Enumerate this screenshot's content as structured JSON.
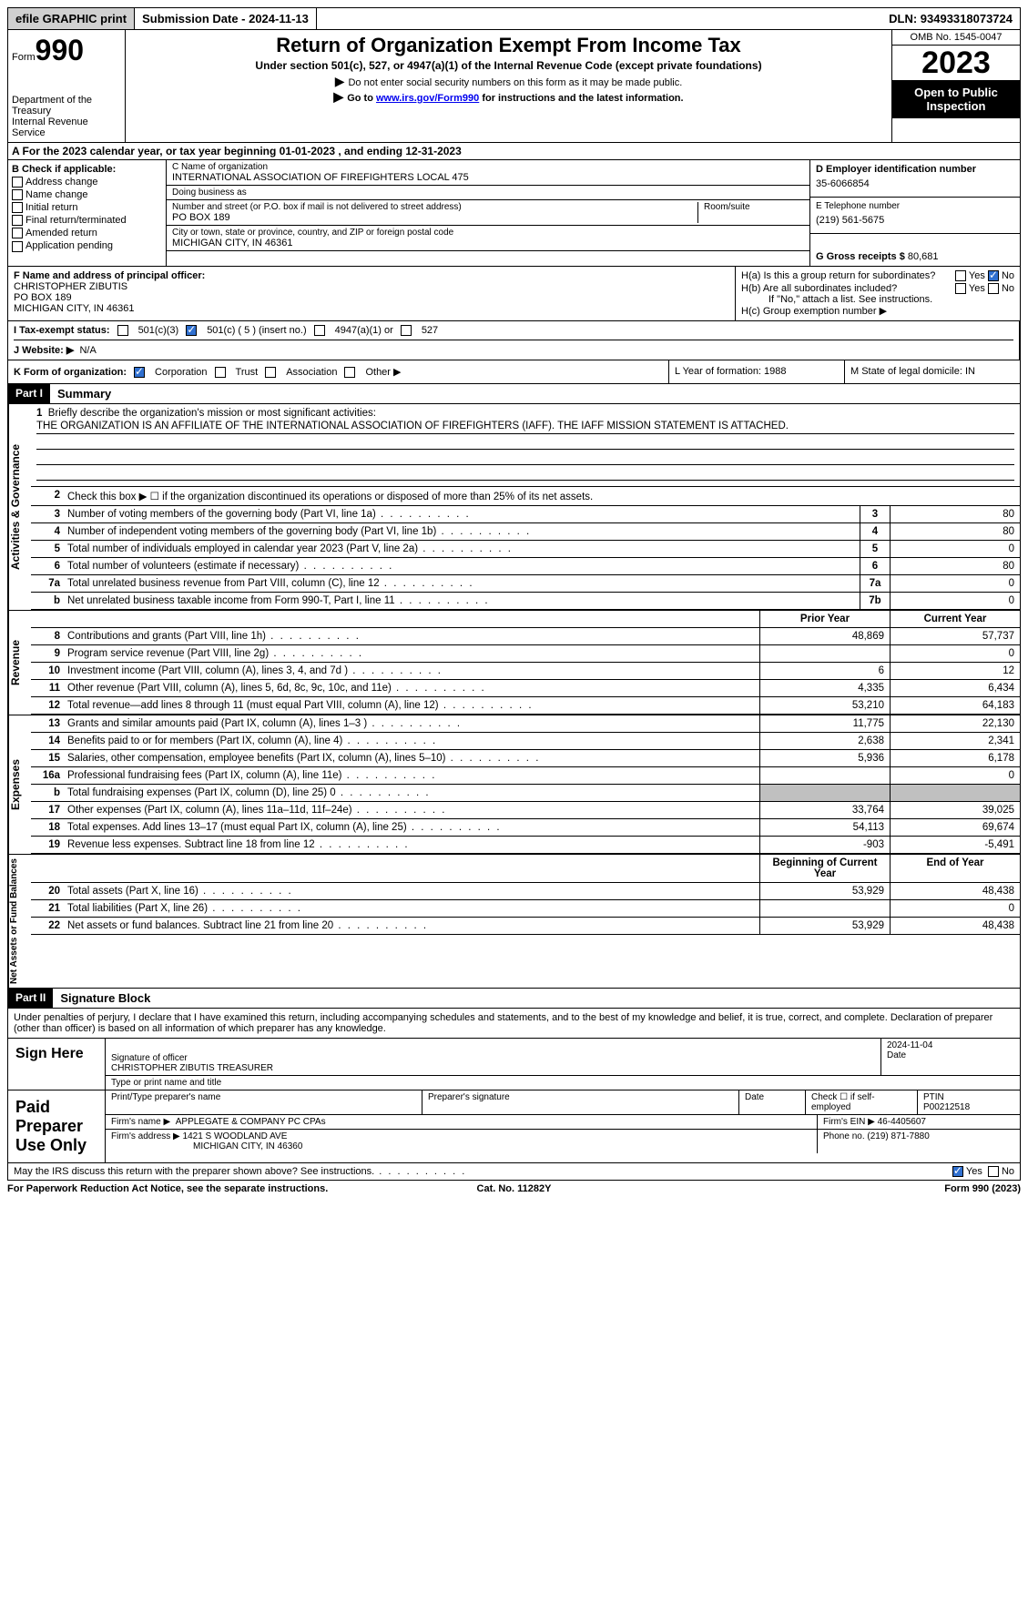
{
  "topbar": {
    "efile": "efile GRAPHIC print",
    "submission": "Submission Date - 2024-11-13",
    "dln": "DLN: 93493318073724"
  },
  "header": {
    "form_word": "Form",
    "form_no": "990",
    "dept": "Department of the Treasury\nInternal Revenue Service",
    "title": "Return of Organization Exempt From Income Tax",
    "sub1": "Under section 501(c), 527, or 4947(a)(1) of the Internal Revenue Code (except private foundations)",
    "sub2": "Do not enter social security numbers on this form as it may be made public.",
    "sub3_pre": "Go to ",
    "sub3_link": "www.irs.gov/Form990",
    "sub3_post": " for instructions and the latest information.",
    "omb": "OMB No. 1545-0047",
    "year": "2023",
    "open": "Open to Public Inspection"
  },
  "rowA": "A  For the 2023 calendar year, or tax year beginning 01-01-2023    , and ending 12-31-2023",
  "colB": {
    "hdr": "B Check if applicable:",
    "items": [
      "Address change",
      "Name change",
      "Initial return",
      "Final return/terminated",
      "Amended return",
      "Application pending"
    ]
  },
  "colC": {
    "name_label": "C Name of organization",
    "name": "INTERNATIONAL ASSOCIATION OF FIREFIGHTERS LOCAL 475",
    "dba_label": "Doing business as",
    "dba": "",
    "street_label": "Number and street (or P.O. box if mail is not delivered to street address)",
    "street": "PO BOX 189",
    "room_label": "Room/suite",
    "city_label": "City or town, state or province, country, and ZIP or foreign postal code",
    "city": "MICHIGAN CITY, IN  46361"
  },
  "colD": {
    "ein_label": "D Employer identification number",
    "ein": "35-6066854",
    "phone_label": "E Telephone number",
    "phone": "(219) 561-5675",
    "gross_label": "G Gross receipts $",
    "gross": "80,681"
  },
  "colF": {
    "label": "F  Name and address of principal officer:",
    "name": "CHRISTOPHER ZIBUTIS",
    "addr1": "PO BOX 189",
    "addr2": "MICHIGAN CITY, IN  46361"
  },
  "colH": {
    "ha": "H(a)  Is this a group return for subordinates?",
    "hb": "H(b)  Are all subordinates included?",
    "hb_note": "If \"No,\" attach a list. See instructions.",
    "hc": "H(c)  Group exemption number ▶"
  },
  "rowI": {
    "label": "I    Tax-exempt status:",
    "opt1": "501(c)(3)",
    "opt2": "501(c) ( 5 ) (insert no.)",
    "opt3": "4947(a)(1) or",
    "opt4": "527"
  },
  "rowJ": {
    "label": "J    Website: ▶",
    "val": "N/A"
  },
  "rowK": {
    "label": "K Form of organization:",
    "opts": [
      "Corporation",
      "Trust",
      "Association",
      "Other ▶"
    ],
    "l": "L Year of formation: 1988",
    "m": "M State of legal domicile: IN"
  },
  "parts": {
    "p1": "Part I",
    "p1_title": "Summary",
    "p2": "Part II",
    "p2_title": "Signature Block"
  },
  "mission": {
    "label": "Briefly describe the organization's mission or most significant activities:",
    "text": "THE ORGANIZATION IS AN AFFILIATE OF THE INTERNATIONAL ASSOCIATION OF FIREFIGHTERS (IAFF). THE IAFF MISSION STATEMENT IS ATTACHED."
  },
  "line2": "Check this box ▶ ☐ if the organization discontinued its operations or disposed of more than 25% of its net assets.",
  "gov_lines": [
    {
      "n": "3",
      "d": "Number of voting members of the governing body (Part VI, line 1a)",
      "box": "3",
      "v": "80"
    },
    {
      "n": "4",
      "d": "Number of independent voting members of the governing body (Part VI, line 1b)",
      "box": "4",
      "v": "80"
    },
    {
      "n": "5",
      "d": "Total number of individuals employed in calendar year 2023 (Part V, line 2a)",
      "box": "5",
      "v": "0"
    },
    {
      "n": "6",
      "d": "Total number of volunteers (estimate if necessary)",
      "box": "6",
      "v": "80"
    },
    {
      "n": "7a",
      "d": "Total unrelated business revenue from Part VIII, column (C), line 12",
      "box": "7a",
      "v": "0"
    },
    {
      "n": "b",
      "d": "Net unrelated business taxable income from Form 990-T, Part I, line 11",
      "box": "7b",
      "v": "0"
    }
  ],
  "col_hdrs": {
    "prior": "Prior Year",
    "current": "Current Year"
  },
  "rev_lines": [
    {
      "n": "8",
      "d": "Contributions and grants (Part VIII, line 1h)",
      "p": "48,869",
      "c": "57,737"
    },
    {
      "n": "9",
      "d": "Program service revenue (Part VIII, line 2g)",
      "p": "",
      "c": "0"
    },
    {
      "n": "10",
      "d": "Investment income (Part VIII, column (A), lines 3, 4, and 7d )",
      "p": "6",
      "c": "12"
    },
    {
      "n": "11",
      "d": "Other revenue (Part VIII, column (A), lines 5, 6d, 8c, 9c, 10c, and 11e)",
      "p": "4,335",
      "c": "6,434"
    },
    {
      "n": "12",
      "d": "Total revenue—add lines 8 through 11 (must equal Part VIII, column (A), line 12)",
      "p": "53,210",
      "c": "64,183"
    }
  ],
  "exp_lines": [
    {
      "n": "13",
      "d": "Grants and similar amounts paid (Part IX, column (A), lines 1–3 )",
      "p": "11,775",
      "c": "22,130"
    },
    {
      "n": "14",
      "d": "Benefits paid to or for members (Part IX, column (A), line 4)",
      "p": "2,638",
      "c": "2,341"
    },
    {
      "n": "15",
      "d": "Salaries, other compensation, employee benefits (Part IX, column (A), lines 5–10)",
      "p": "5,936",
      "c": "6,178"
    },
    {
      "n": "16a",
      "d": "Professional fundraising fees (Part IX, column (A), line 11e)",
      "p": "",
      "c": "0"
    },
    {
      "n": "b",
      "d": "Total fundraising expenses (Part IX, column (D), line 25) 0",
      "p": "",
      "c": "",
      "shaded": true
    },
    {
      "n": "17",
      "d": "Other expenses (Part IX, column (A), lines 11a–11d, 11f–24e)",
      "p": "33,764",
      "c": "39,025"
    },
    {
      "n": "18",
      "d": "Total expenses. Add lines 13–17 (must equal Part IX, column (A), line 25)",
      "p": "54,113",
      "c": "69,674"
    },
    {
      "n": "19",
      "d": "Revenue less expenses. Subtract line 18 from line 12",
      "p": "-903",
      "c": "-5,491"
    }
  ],
  "na_hdrs": {
    "begin": "Beginning of Current Year",
    "end": "End of Year"
  },
  "na_lines": [
    {
      "n": "20",
      "d": "Total assets (Part X, line 16)",
      "p": "53,929",
      "c": "48,438"
    },
    {
      "n": "21",
      "d": "Total liabilities (Part X, line 26)",
      "p": "",
      "c": "0"
    },
    {
      "n": "22",
      "d": "Net assets or fund balances. Subtract line 21 from line 20",
      "p": "53,929",
      "c": "48,438"
    }
  ],
  "vert": {
    "gov": "Activities & Governance",
    "rev": "Revenue",
    "exp": "Expenses",
    "na": "Net Assets or Fund Balances"
  },
  "sig_decl": "Under penalties of perjury, I declare that I have examined this return, including accompanying schedules and statements, and to the best of my knowledge and belief, it is true, correct, and complete. Declaration of preparer (other than officer) is based on all information of which preparer has any knowledge.",
  "sign_here": {
    "label": "Sign Here",
    "sig_label": "Signature of officer",
    "name": "CHRISTOPHER ZIBUTIS TREASURER",
    "type_label": "Type or print name and title",
    "date_label": "Date",
    "date": "2024-11-04"
  },
  "paid_prep": {
    "label": "Paid Preparer Use Only",
    "print_label": "Print/Type preparer's name",
    "sig_label": "Preparer's signature",
    "date_label": "Date",
    "check_label": "Check ☐ if self-employed",
    "ptin_label": "PTIN",
    "ptin": "P00212518",
    "firm_name_label": "Firm's name    ▶",
    "firm_name": "APPLEGATE & COMPANY PC CPAs",
    "firm_ein_label": "Firm's EIN ▶",
    "firm_ein": "46-4405607",
    "firm_addr_label": "Firm's address ▶",
    "firm_addr1": "1421 S WOODLAND AVE",
    "firm_addr2": "MICHIGAN CITY, IN  46360",
    "phone_label": "Phone no.",
    "phone": "(219) 871-7880"
  },
  "discuss": "May the IRS discuss this return with the preparer shown above? See instructions.",
  "footer": {
    "pra": "For Paperwork Reduction Act Notice, see the separate instructions.",
    "cat": "Cat. No. 11282Y",
    "form": "Form 990 (2023)"
  }
}
